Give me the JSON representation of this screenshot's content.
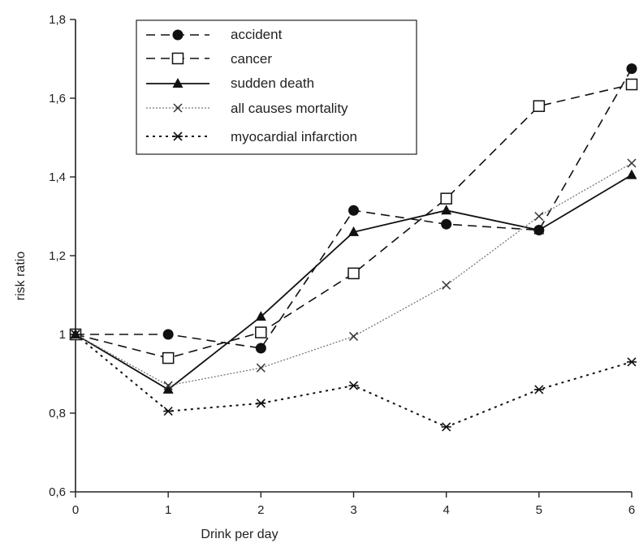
{
  "chart_data": {
    "type": "line",
    "title": "",
    "xlabel": "Drink per day",
    "ylabel": "risk ratio",
    "x": [
      0,
      1,
      2,
      3,
      4,
      5,
      6
    ],
    "xlim": [
      0,
      6
    ],
    "ylim": [
      0.6,
      1.8
    ],
    "x_ticks": [
      "0",
      "1",
      "2",
      "3",
      "4",
      "5",
      "6"
    ],
    "y_ticks": [
      {
        "value": 0.6,
        "label": "0,6"
      },
      {
        "value": 0.8,
        "label": "0,8"
      },
      {
        "value": 1.0,
        "label": "1"
      },
      {
        "value": 1.2,
        "label": "1,2"
      },
      {
        "value": 1.4,
        "label": "1,4"
      },
      {
        "value": 1.6,
        "label": "1,6"
      },
      {
        "value": 1.8,
        "label": "1,8"
      }
    ],
    "grid": false,
    "legend_position": "top-left",
    "series": [
      {
        "name": "accident",
        "marker": "filled-circle",
        "line": "dashed",
        "color": "#111111",
        "values": [
          1.0,
          1.0,
          0.965,
          1.315,
          1.28,
          1.265,
          1.675
        ]
      },
      {
        "name": "cancer",
        "marker": "open-square",
        "line": "dashed",
        "color": "#111111",
        "values": [
          1.0,
          0.94,
          1.005,
          1.155,
          1.345,
          1.58,
          1.635
        ]
      },
      {
        "name": "sudden death",
        "marker": "filled-triangle",
        "line": "solid",
        "color": "#111111",
        "values": [
          1.0,
          0.86,
          1.045,
          1.26,
          1.315,
          1.265,
          1.405
        ]
      },
      {
        "name": "all causes mortality",
        "marker": "x",
        "line": "dotted-light",
        "color": "#777777",
        "values": [
          1.0,
          0.87,
          0.915,
          0.995,
          1.125,
          1.3,
          1.435
        ]
      },
      {
        "name": "myocardial infarction",
        "marker": "asterisk",
        "line": "dotted",
        "color": "#111111",
        "values": [
          1.0,
          0.805,
          0.825,
          0.87,
          0.765,
          0.86,
          0.93
        ]
      }
    ]
  }
}
